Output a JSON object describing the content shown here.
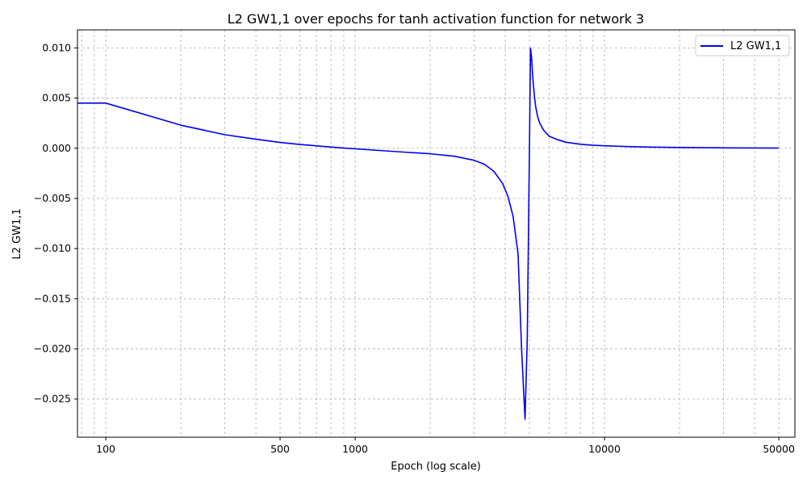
{
  "chart_data": {
    "type": "line",
    "title": "L2 GW1,1 over epochs for tanh activation function for network 3",
    "xlabel": "Epoch (log scale)",
    "ylabel": "L2 GW1,1",
    "xscale": "log",
    "xlim": [
      77,
      58000
    ],
    "ylim": [
      -0.0288,
      0.0118
    ],
    "grid": true,
    "grid_style": "dashed",
    "legend_position": "top-right",
    "x_ticks": [
      {
        "value": 100,
        "label": "100"
      },
      {
        "value": 500,
        "label": "500"
      },
      {
        "value": 1000,
        "label": "1000"
      },
      {
        "value": 10000,
        "label": "10000"
      },
      {
        "value": 50000,
        "label": "50000"
      }
    ],
    "y_ticks": [
      {
        "value": 0.01,
        "label": "0.010"
      },
      {
        "value": 0.005,
        "label": "0.005"
      },
      {
        "value": 0.0,
        "label": "0.000"
      },
      {
        "value": -0.005,
        "label": "−0.005"
      },
      {
        "value": -0.01,
        "label": "−0.010"
      },
      {
        "value": -0.015,
        "label": "−0.015"
      },
      {
        "value": -0.02,
        "label": "−0.020"
      },
      {
        "value": -0.025,
        "label": "−0.025"
      }
    ],
    "series": [
      {
        "name": "L2 GW1,1",
        "color": "#0000ee",
        "x": [
          1,
          100,
          200,
          300,
          400,
          500,
          600,
          700,
          800,
          900,
          1000,
          1300,
          1600,
          2000,
          2500,
          3000,
          3300,
          3600,
          3900,
          4100,
          4300,
          4500,
          4650,
          4800,
          4900,
          5000,
          5050,
          5100,
          5150,
          5200,
          5250,
          5300,
          5400,
          5500,
          5700,
          6000,
          6500,
          7000,
          8000,
          9000,
          10000,
          12000,
          15000,
          20000,
          30000,
          50000
        ],
        "y": [
          0.0045,
          0.0045,
          0.0023,
          0.00135,
          0.0009,
          0.00058,
          0.00038,
          0.00024,
          0.00012,
          2e-05,
          -5e-05,
          -0.00025,
          -0.0004,
          -0.00055,
          -0.0008,
          -0.0012,
          -0.0016,
          -0.0023,
          -0.0035,
          -0.0048,
          -0.0068,
          -0.0105,
          -0.02,
          -0.027,
          -0.019,
          0.0,
          0.01,
          0.009,
          0.0072,
          0.006,
          0.0049,
          0.0041,
          0.0031,
          0.0025,
          0.0018,
          0.0012,
          0.00085,
          0.0006,
          0.0004,
          0.0003,
          0.00025,
          0.00018,
          0.00012,
          8e-05,
          4e-05,
          2e-05
        ]
      }
    ]
  }
}
